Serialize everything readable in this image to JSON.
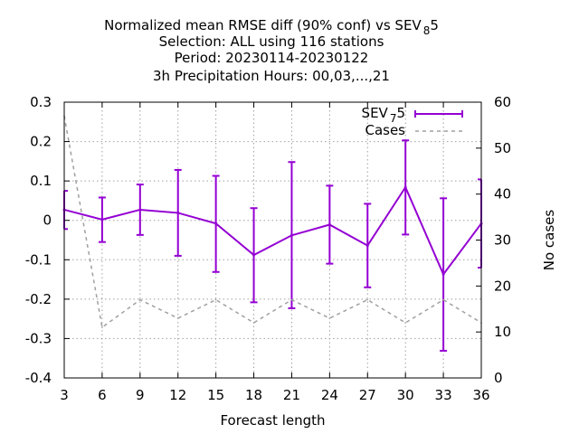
{
  "chart_data": {
    "type": "line",
    "title_lines": [
      [
        "Normalized mean RMSE diff (90% conf) vs SEV",
        "8",
        "5"
      ],
      [
        "Selection: ALL using   116 stations",
        "",
        ""
      ],
      [
        "Period: 20230114-20230122",
        "",
        ""
      ],
      [
        "3h Precipitation   Hours:  00,03,...,21",
        "",
        ""
      ]
    ],
    "xlabel": "Forecast length",
    "ylabel": "",
    "y2label": "No cases",
    "xlim": [
      3,
      36
    ],
    "ylim": [
      -0.4,
      0.3
    ],
    "y2lim": [
      0,
      60
    ],
    "x_ticks": [
      "3",
      "6",
      "9",
      "12",
      "15",
      "18",
      "21",
      "24",
      "27",
      "30",
      "33",
      "36"
    ],
    "y_ticks": [
      "0.3",
      "0.2",
      "0.1",
      "0",
      "-0.1",
      "-0.2",
      "-0.3",
      "-0.4"
    ],
    "y2_ticks": [
      "60",
      "50",
      "40",
      "30",
      "20",
      "10",
      "0"
    ],
    "grid": true,
    "legend_position": "top-right",
    "series": [
      {
        "name": [
          "SEV",
          "7",
          "5"
        ],
        "axis": "y",
        "style": "line-errorbars",
        "color": "#9400d3",
        "x": [
          3,
          6,
          9,
          12,
          15,
          18,
          21,
          24,
          27,
          30,
          33,
          36
        ],
        "y": [
          0.027,
          0.002,
          0.027,
          0.019,
          -0.008,
          -0.088,
          -0.038,
          -0.011,
          -0.064,
          0.084,
          -0.137,
          -0.008
        ],
        "y_low": [
          -0.022,
          -0.055,
          -0.037,
          -0.09,
          -0.131,
          -0.208,
          -0.223,
          -0.11,
          -0.17,
          -0.036,
          -0.331,
          -0.12
        ],
        "y_high": [
          0.075,
          0.058,
          0.091,
          0.128,
          0.113,
          0.031,
          0.148,
          0.088,
          0.042,
          0.203,
          0.056,
          0.104
        ]
      },
      {
        "name": [
          "Cases",
          "",
          ""
        ],
        "axis": "y2",
        "style": "dashed",
        "color": "#a0a0a0",
        "x": [
          3,
          6,
          9,
          12,
          15,
          18,
          21,
          24,
          27,
          30,
          33,
          36
        ],
        "y": [
          57,
          11,
          17,
          13,
          17,
          12,
          17,
          13,
          17,
          12,
          17,
          12
        ]
      }
    ]
  }
}
